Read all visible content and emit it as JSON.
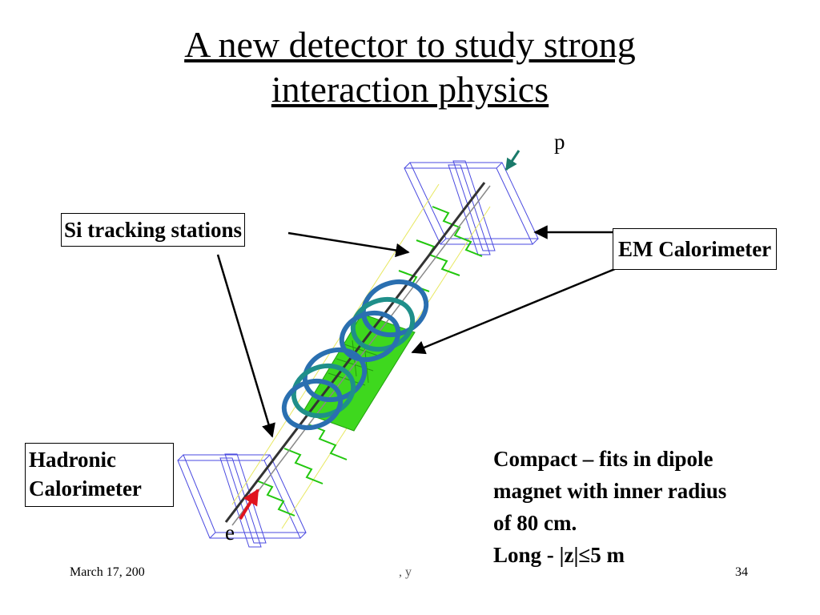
{
  "title": {
    "line1": "A new detector to study strong",
    "line2": "interaction physics"
  },
  "labels": {
    "si_tracking": "Si tracking stations",
    "em_calorimeter": "EM Calorimeter",
    "hadronic_line1": "Hadronic",
    "hadronic_line2": "Calorimeter",
    "proton": "p",
    "electron": "e"
  },
  "description": {
    "line1": "Compact – fits in dipole",
    "line2": "magnet with inner radius",
    "line3": "of 80 cm.",
    "line4": "Long - |z|≤5 m"
  },
  "footer": {
    "date": "March 17, 200",
    "middle": ", y",
    "page": "34"
  },
  "colors": {
    "calorimeter_outline": "#4a4ae0",
    "tracking_green": "#22c70e",
    "rings_blue": "#2a6fb0",
    "rings_teal": "#1f8f8a",
    "beam_pipe": "#333333",
    "proton_arrow": "#1a7a6a",
    "electron_arrow": "#e0141e"
  }
}
